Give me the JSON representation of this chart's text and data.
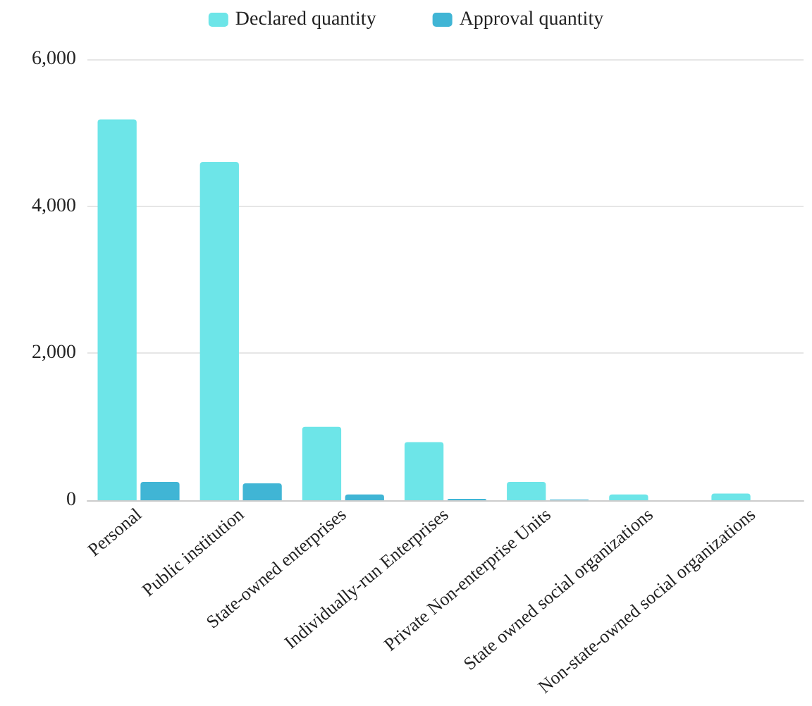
{
  "chart_data": {
    "type": "bar",
    "categories": [
      "Personal",
      "Public institution",
      "State-owned enterprises",
      "Individually-run Enterprises",
      "Private Non-enterprise Units",
      "State owned social organizations",
      "Non-state-owned social organizations"
    ],
    "series": [
      {
        "name": "Declared quantity",
        "color": "#6de5e8",
        "values": [
          5180,
          4600,
          1000,
          790,
          250,
          80,
          90
        ]
      },
      {
        "name": "Approval quantity",
        "color": "#40b5d5",
        "values": [
          250,
          230,
          80,
          20,
          10,
          null,
          null
        ]
      }
    ],
    "ylim": [
      0,
      6000
    ],
    "yticks": [
      {
        "value": 0,
        "label": "0"
      },
      {
        "value": 2000,
        "label": "2,000"
      },
      {
        "value": 4000,
        "label": "4,000"
      },
      {
        "value": 6000,
        "label": "6,000"
      }
    ],
    "grid": "y",
    "legend": "top"
  }
}
